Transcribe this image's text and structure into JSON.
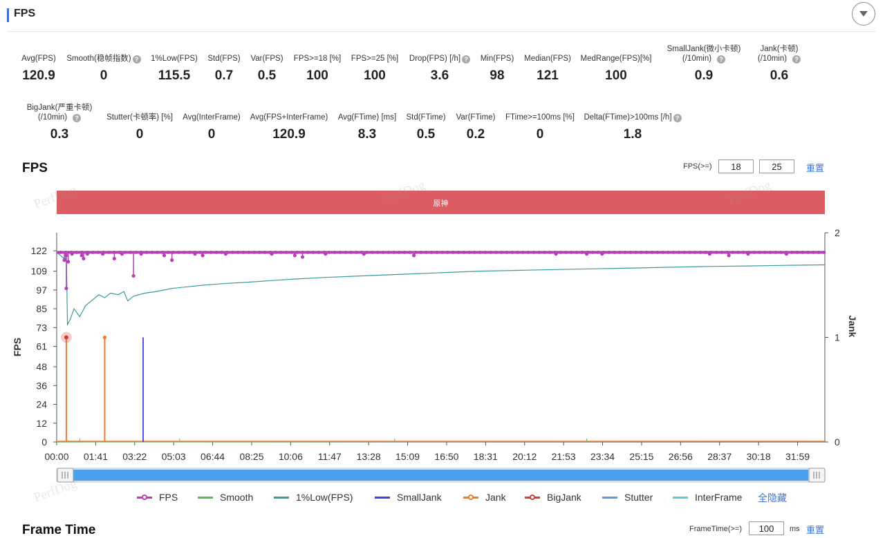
{
  "header": {
    "title": "FPS"
  },
  "stats_row1": [
    {
      "label": "Avg(FPS)",
      "value": "120.9",
      "help": false
    },
    {
      "label": "Smooth(稳帧指数)",
      "value": "0",
      "help": true
    },
    {
      "label": "1%Low(FPS)",
      "value": "115.5",
      "help": false
    },
    {
      "label": "Std(FPS)",
      "value": "0.7",
      "help": false
    },
    {
      "label": "Var(FPS)",
      "value": "0.5",
      "help": false
    },
    {
      "label": "FPS>=18 [%]",
      "value": "100",
      "help": false
    },
    {
      "label": "FPS>=25 [%]",
      "value": "100",
      "help": false
    },
    {
      "label": "Drop(FPS) [/h]",
      "value": "3.6",
      "help": true
    },
    {
      "label": "Min(FPS)",
      "value": "98",
      "help": false
    },
    {
      "label": "Median(FPS)",
      "value": "121",
      "help": false
    },
    {
      "label": "MedRange(FPS)[%]",
      "value": "100",
      "help": false
    },
    {
      "label": "SmallJank(微小卡顿)",
      "label2": "(/10min)",
      "value": "0.9",
      "help": true
    },
    {
      "label": "Jank(卡顿)",
      "label2": "(/10min)",
      "value": "0.6",
      "help": true
    }
  ],
  "stats_row2": [
    {
      "label": "BigJank(严重卡顿)",
      "label2": "(/10min)",
      "value": "0.3",
      "help": true
    },
    {
      "label": "Stutter(卡顿率) [%]",
      "value": "0",
      "help": false
    },
    {
      "label": "Avg(InterFrame)",
      "value": "0",
      "help": false
    },
    {
      "label": "Avg(FPS+InterFrame)",
      "value": "120.9",
      "help": false
    },
    {
      "label": "Avg(FTime) [ms]",
      "value": "8.3",
      "help": false
    },
    {
      "label": "Std(FTime)",
      "value": "0.5",
      "help": false
    },
    {
      "label": "Var(FTime)",
      "value": "0.2",
      "help": false
    },
    {
      "label": "FTime>=100ms [%]",
      "value": "0",
      "help": false
    },
    {
      "label": "Delta(FTime)>100ms [/h]",
      "value": "1.8",
      "help": true
    }
  ],
  "fps_section": {
    "title": "FPS",
    "threshold_label": "FPS(>=)",
    "threshold_1": "18",
    "threshold_2": "25",
    "reset_label": "重置",
    "scene_label": "原神",
    "watermark": "PerfDog"
  },
  "legend": {
    "items": [
      {
        "name": "FPS",
        "color": "#b540b5",
        "marker": true
      },
      {
        "name": "Smooth",
        "color": "#5cb85c",
        "marker": false
      },
      {
        "name": "1%Low(FPS)",
        "color": "#3a9b9b",
        "marker": false
      },
      {
        "name": "SmallJank",
        "color": "#3f3fe0",
        "marker": false
      },
      {
        "name": "Jank",
        "color": "#f07a30",
        "marker": true
      },
      {
        "name": "BigJank",
        "color": "#d83a3a",
        "marker": true
      },
      {
        "name": "Stutter",
        "color": "#5a9ae8",
        "marker": false
      },
      {
        "name": "InterFrame",
        "color": "#5ccad8",
        "marker": false
      }
    ],
    "hide_all_label": "全隐藏"
  },
  "frametime_section": {
    "title": "Frame Time",
    "threshold_label": "FrameTime(>=)",
    "threshold_value": "100",
    "unit": "ms",
    "reset_label": "重置"
  },
  "chart_data": {
    "type": "line",
    "xlabel": "",
    "ylabel": "FPS",
    "y2label": "Jank",
    "ylim": [
      0,
      133.5
    ],
    "y2lim": [
      0,
      2
    ],
    "yticks": [
      0,
      12,
      24,
      36,
      48,
      61,
      73,
      85,
      97,
      109,
      122
    ],
    "y2ticks": [
      0,
      1,
      2
    ],
    "xlim_seconds": [
      0,
      2000
    ],
    "xticks": [
      "00:00",
      "01:41",
      "03:22",
      "05:03",
      "06:44",
      "08:25",
      "10:06",
      "11:47",
      "13:28",
      "15:09",
      "16:50",
      "18:31",
      "20:12",
      "21:53",
      "23:34",
      "25:15",
      "26:56",
      "28:37",
      "30:18",
      "31:59"
    ],
    "colors": {
      "fps": "#b540b5",
      "low1": "#3a9b9b",
      "jank": "#f07a30",
      "bigjank": "#d83a3a",
      "smalljank": "#3f3fe0",
      "smooth": "#5cb85c"
    },
    "series": [
      {
        "name": "FPS",
        "baseline": 121,
        "dips": [
          [
            20,
            116
          ],
          [
            25,
            119
          ],
          [
            30,
            115
          ],
          [
            40,
            120
          ],
          [
            65,
            119
          ],
          [
            70,
            117
          ],
          [
            80,
            120
          ],
          [
            120,
            120
          ],
          [
            150,
            117
          ],
          [
            170,
            120
          ],
          [
            200,
            106
          ],
          [
            220,
            120
          ],
          [
            280,
            119
          ],
          [
            300,
            116
          ],
          [
            360,
            120
          ],
          [
            380,
            119
          ],
          [
            440,
            120
          ],
          [
            560,
            120
          ],
          [
            620,
            119
          ],
          [
            640,
            118
          ],
          [
            700,
            120
          ],
          [
            800,
            120
          ],
          [
            930,
            119
          ],
          [
            1300,
            120
          ],
          [
            1380,
            120
          ],
          [
            1420,
            120
          ],
          [
            1700,
            120
          ],
          [
            1750,
            119
          ],
          [
            1800,
            120
          ],
          [
            1900,
            120
          ]
        ]
      },
      {
        "name": "1%Low(FPS)",
        "values": [
          [
            0,
            121
          ],
          [
            15,
            118
          ],
          [
            22,
            116
          ],
          [
            25,
            121
          ],
          [
            28,
            75
          ],
          [
            35,
            78
          ],
          [
            45,
            85
          ],
          [
            60,
            80
          ],
          [
            75,
            87
          ],
          [
            95,
            91
          ],
          [
            110,
            94
          ],
          [
            125,
            92
          ],
          [
            140,
            95
          ],
          [
            160,
            94
          ],
          [
            175,
            96
          ],
          [
            185,
            90
          ],
          [
            200,
            93
          ],
          [
            230,
            95
          ],
          [
            260,
            96
          ],
          [
            300,
            98
          ],
          [
            340,
            99
          ],
          [
            380,
            100
          ],
          [
            430,
            101
          ],
          [
            500,
            102
          ],
          [
            560,
            103
          ],
          [
            620,
            104
          ],
          [
            700,
            105
          ],
          [
            800,
            106
          ],
          [
            900,
            107
          ],
          [
            1000,
            108
          ],
          [
            1100,
            109
          ],
          [
            1200,
            109.5
          ],
          [
            1300,
            110
          ],
          [
            1400,
            110.5
          ],
          [
            1500,
            111
          ],
          [
            1600,
            111.5
          ],
          [
            1700,
            112
          ],
          [
            1800,
            112.3
          ],
          [
            1900,
            112.7
          ],
          [
            2000,
            113
          ]
        ]
      },
      {
        "name": "BigJank",
        "values": [
          [
            25,
            1
          ]
        ]
      },
      {
        "name": "Jank",
        "values": [
          [
            25,
            1
          ],
          [
            125,
            1
          ]
        ]
      },
      {
        "name": "SmallJank",
        "values": [
          [
            225,
            1
          ]
        ]
      },
      {
        "name": "Smooth",
        "values": [
          [
            0,
            0
          ],
          [
            2000,
            0
          ]
        ]
      }
    ]
  }
}
